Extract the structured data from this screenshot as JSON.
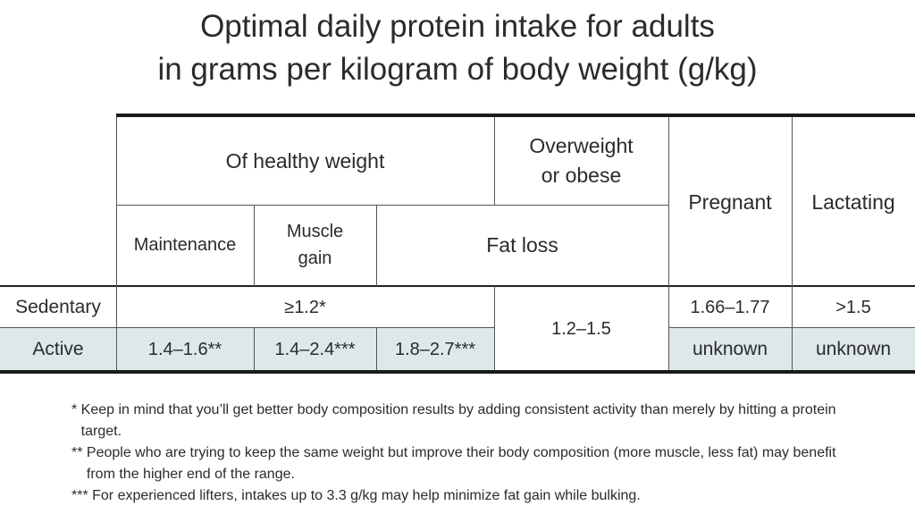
{
  "title": {
    "line1": "Optimal daily protein intake for adults",
    "line2": "in grams per kilogram of body weight (g/kg)"
  },
  "headers": {
    "healthy": "Of healthy weight",
    "overweight_l1": "Overweight",
    "overweight_l2": "or obese",
    "pregnant": "Pregnant",
    "lactating": "Lactating",
    "maintenance": "Maintenance",
    "muscle_l1": "Muscle",
    "muscle_l2": "gain",
    "fat_loss": "Fat loss"
  },
  "rows": {
    "sedentary": {
      "label": "Sedentary",
      "healthy_prefix": "≥",
      "healthy": "1.2*",
      "pregnant": "1.66–1.77",
      "lactating": ">1.5"
    },
    "active": {
      "label": "Active",
      "maintenance": "1.4–1.6**",
      "muscle": "1.4–2.4***",
      "fat_loss": "1.8–2.7***",
      "pregnant": "unknown",
      "lactating": "unknown"
    },
    "overweight_value": "1.2–1.5"
  },
  "colors": {
    "active_row_shade": "#dde8ea"
  },
  "notes": [
    {
      "marker": "* ",
      "text": "Keep in mind that you’ll get better body composition results by adding consistent activity than merely by hitting a protein target."
    },
    {
      "marker": "** ",
      "text": "People who are trying to keep the same weight but improve their body composition (more muscle, less fat) may benefit from the higher end of the range."
    },
    {
      "marker": "*** ",
      "text": "For experienced lifters, intakes up to 3.3 g/kg may help minimize fat gain while bulking."
    }
  ]
}
